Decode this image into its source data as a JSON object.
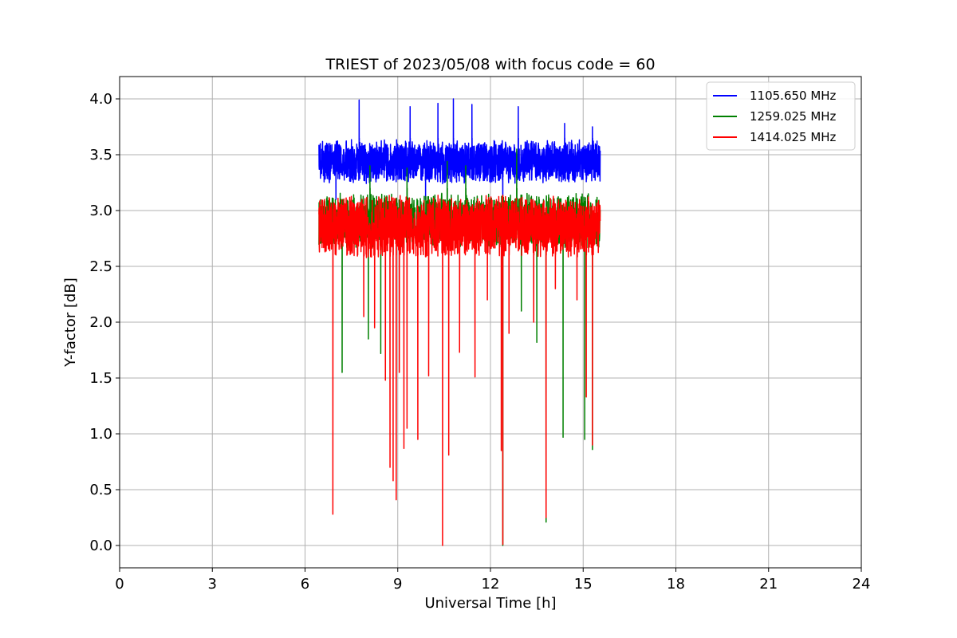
{
  "chart_data": {
    "type": "line",
    "title": "TRIEST of 2023/05/08 with focus code = 60",
    "xlabel": "Universal Time [h]",
    "ylabel": "Y-factor [dB]",
    "xlim": [
      0,
      24
    ],
    "ylim": [
      -0.2,
      4.2
    ],
    "xticks": [
      0,
      3,
      6,
      9,
      12,
      15,
      18,
      21,
      24
    ],
    "yticks": [
      0.0,
      0.5,
      1.0,
      1.5,
      2.0,
      2.5,
      3.0,
      3.5,
      4.0
    ],
    "xtick_labels": [
      "0",
      "3",
      "6",
      "9",
      "12",
      "15",
      "18",
      "21",
      "24"
    ],
    "ytick_labels": [
      "0.0",
      "0.5",
      "1.0",
      "1.5",
      "2.0",
      "2.5",
      "3.0",
      "3.5",
      "4.0"
    ],
    "grid": true,
    "legend_position": "top-right",
    "series": [
      {
        "name": "1105.650 MHz",
        "color": "#0000ff",
        "range": [
          6.45,
          15.55
        ],
        "base_low": 3.15,
        "base_high": 3.75,
        "peaks": [
          [
            7.75,
            3.99
          ],
          [
            10.8,
            4.0
          ],
          [
            12.9,
            3.93
          ],
          [
            9.4,
            3.93
          ],
          [
            10.3,
            3.96
          ],
          [
            11.4,
            3.95
          ],
          [
            14.4,
            3.78
          ],
          [
            15.3,
            3.75
          ]
        ],
        "dips": [
          [
            12.4,
            3.0
          ],
          [
            7.0,
            3.1
          ],
          [
            9.9,
            3.1
          ]
        ]
      },
      {
        "name": "1259.025 MHz",
        "color": "#008000",
        "range": [
          6.45,
          15.55
        ],
        "base_low": 2.55,
        "base_high": 3.3,
        "peaks": [
          [
            12.85,
            3.55
          ],
          [
            10.6,
            3.44
          ],
          [
            8.1,
            3.4
          ],
          [
            9.3,
            3.38
          ],
          [
            11.2,
            3.4
          ]
        ],
        "dips": [
          [
            12.4,
            0.0
          ],
          [
            13.8,
            0.21
          ],
          [
            15.3,
            0.86
          ],
          [
            15.05,
            0.95
          ],
          [
            14.35,
            0.97
          ],
          [
            13.0,
            2.1
          ],
          [
            13.5,
            1.82
          ],
          [
            7.2,
            1.55
          ],
          [
            8.45,
            1.72
          ],
          [
            8.05,
            1.85
          ]
        ]
      },
      {
        "name": "1414.025 MHz",
        "color": "#ff0000",
        "range": [
          6.45,
          15.55
        ],
        "base_low": 2.45,
        "base_high": 3.3,
        "peaks": [],
        "dips": [
          [
            6.9,
            0.28
          ],
          [
            8.75,
            0.7
          ],
          [
            8.85,
            0.58
          ],
          [
            8.95,
            0.41
          ],
          [
            9.05,
            1.55
          ],
          [
            9.2,
            0.87
          ],
          [
            9.3,
            1.05
          ],
          [
            9.65,
            0.95
          ],
          [
            10.0,
            1.52
          ],
          [
            10.45,
            0.0
          ],
          [
            10.65,
            0.81
          ],
          [
            11.0,
            1.73
          ],
          [
            11.5,
            1.51
          ],
          [
            12.35,
            0.85
          ],
          [
            12.4,
            0.01
          ],
          [
            13.8,
            0.25
          ],
          [
            15.1,
            1.33
          ],
          [
            15.3,
            0.9
          ],
          [
            7.9,
            2.05
          ],
          [
            8.25,
            1.95
          ],
          [
            8.6,
            1.48
          ],
          [
            11.9,
            2.2
          ],
          [
            12.6,
            1.9
          ],
          [
            13.4,
            2.0
          ],
          [
            14.1,
            2.3
          ],
          [
            14.8,
            2.2
          ]
        ]
      }
    ]
  }
}
